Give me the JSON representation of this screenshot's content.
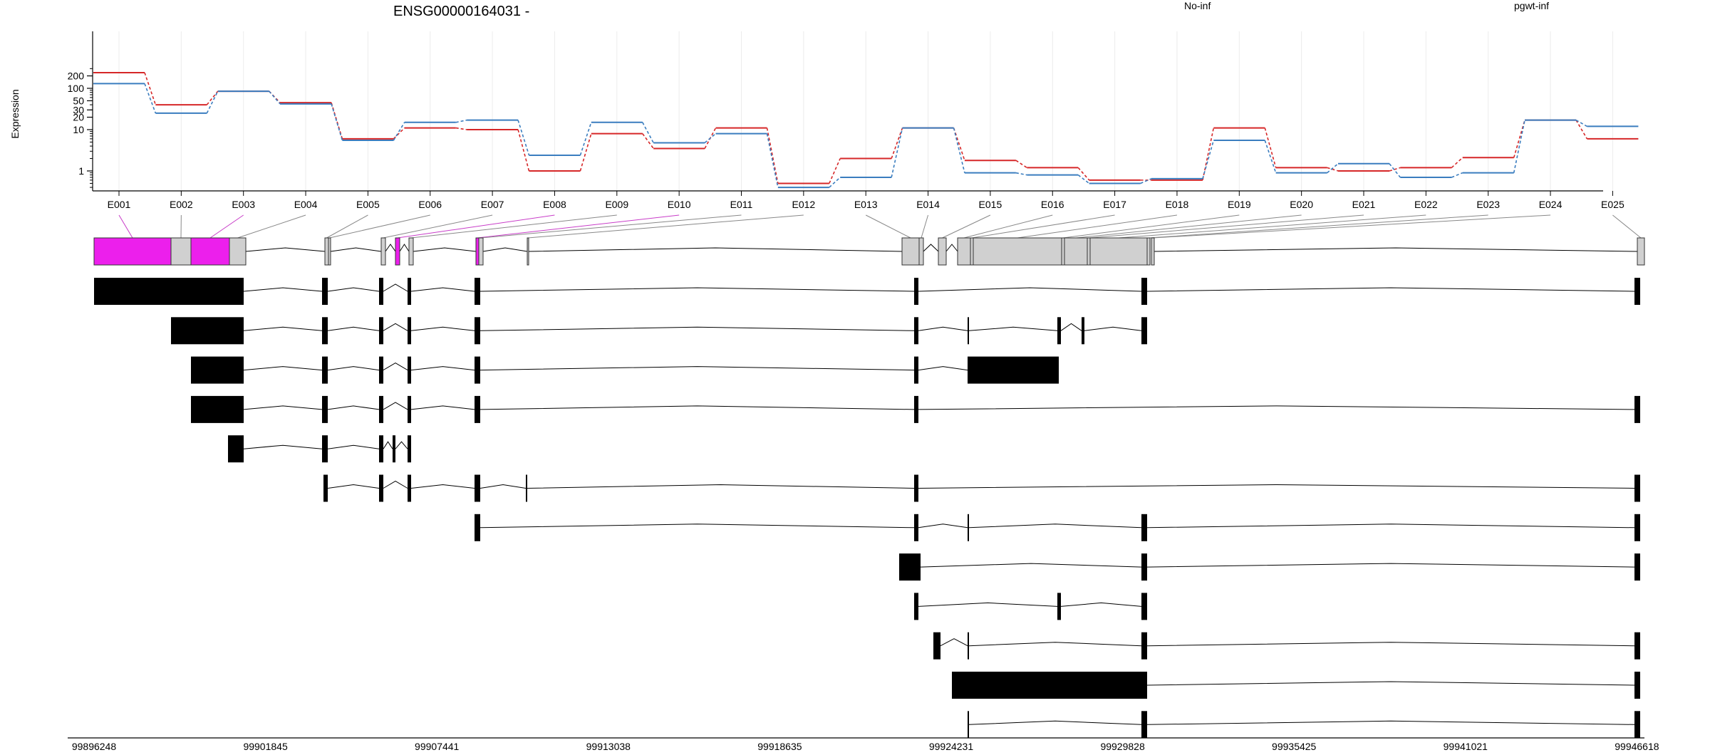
{
  "chart_data": {
    "type": "line",
    "title": "ENSG00000164031 -",
    "ylabel": "Expression",
    "y_scale": "log",
    "y_ticks": [
      1,
      10,
      20,
      30,
      50,
      100,
      200
    ],
    "colors": {
      "No-inf": "#d62728",
      "pgwt-inf": "#3a7dbf"
    },
    "categories": [
      "E001",
      "E002",
      "E003",
      "E004",
      "E005",
      "E006",
      "E007",
      "E008",
      "E009",
      "E010",
      "E011",
      "E012",
      "E013",
      "E014",
      "E015",
      "E016",
      "E017",
      "E018",
      "E019",
      "E020",
      "E021",
      "E022",
      "E023",
      "E024",
      "E025"
    ],
    "series": [
      {
        "name": "No-inf",
        "color": "#d62728",
        "values": [
          240,
          40,
          85,
          45,
          6,
          11,
          10,
          1,
          8,
          3.5,
          11,
          0.5,
          2,
          11,
          1.8,
          1.2,
          0.6,
          0.6,
          11,
          1.2,
          1,
          1.2,
          2.1,
          17,
          6
        ]
      },
      {
        "name": "pgwt-inf",
        "color": "#3a7dbf",
        "values": [
          130,
          25,
          85,
          42,
          5.5,
          15,
          17,
          2.4,
          15,
          4.8,
          8,
          0.4,
          0.7,
          11,
          0.9,
          0.8,
          0.5,
          0.65,
          5.5,
          0.9,
          1.5,
          0.7,
          0.9,
          17,
          12
        ]
      }
    ],
    "genome_ticks": [
      "99896248",
      "99901845",
      "99907441",
      "99913038",
      "99918635",
      "99924231",
      "99929828",
      "99935425",
      "99941021",
      "99946618"
    ]
  }
}
